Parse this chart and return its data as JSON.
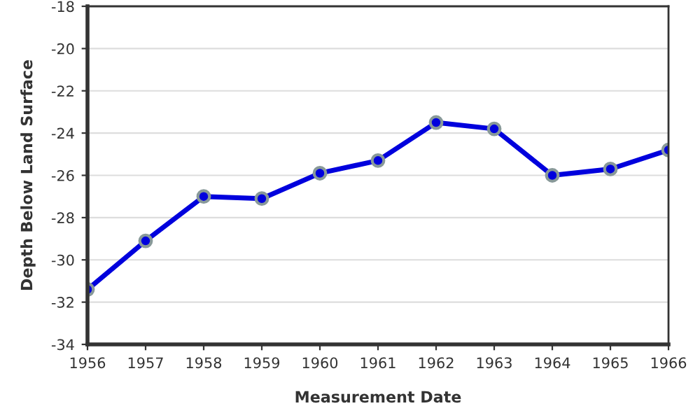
{
  "chart_data": {
    "type": "line",
    "xlabel": "Measurement Date",
    "ylabel": "Depth Below Land Surface",
    "x": [
      1956,
      1957,
      1958,
      1959,
      1960,
      1961,
      1962,
      1963,
      1964,
      1965,
      1966
    ],
    "series": [
      {
        "color": "#0000dd",
        "values": [
          -31.4,
          -29.1,
          -27.0,
          -27.1,
          -25.9,
          -25.3,
          -23.5,
          -23.8,
          -26.0,
          -25.7,
          -24.8
        ]
      }
    ],
    "xlim": [
      1956,
      1966
    ],
    "xticks": [
      1956,
      1957,
      1958,
      1959,
      1960,
      1961,
      1962,
      1963,
      1964,
      1965,
      1966
    ],
    "ylim": [
      -34,
      -18
    ],
    "yticks": [
      -34,
      -32,
      -30,
      -28,
      -26,
      -24,
      -22,
      -20,
      -18
    ],
    "grid": "y",
    "marker": "circle",
    "line_style": "solid",
    "legend": false
  }
}
